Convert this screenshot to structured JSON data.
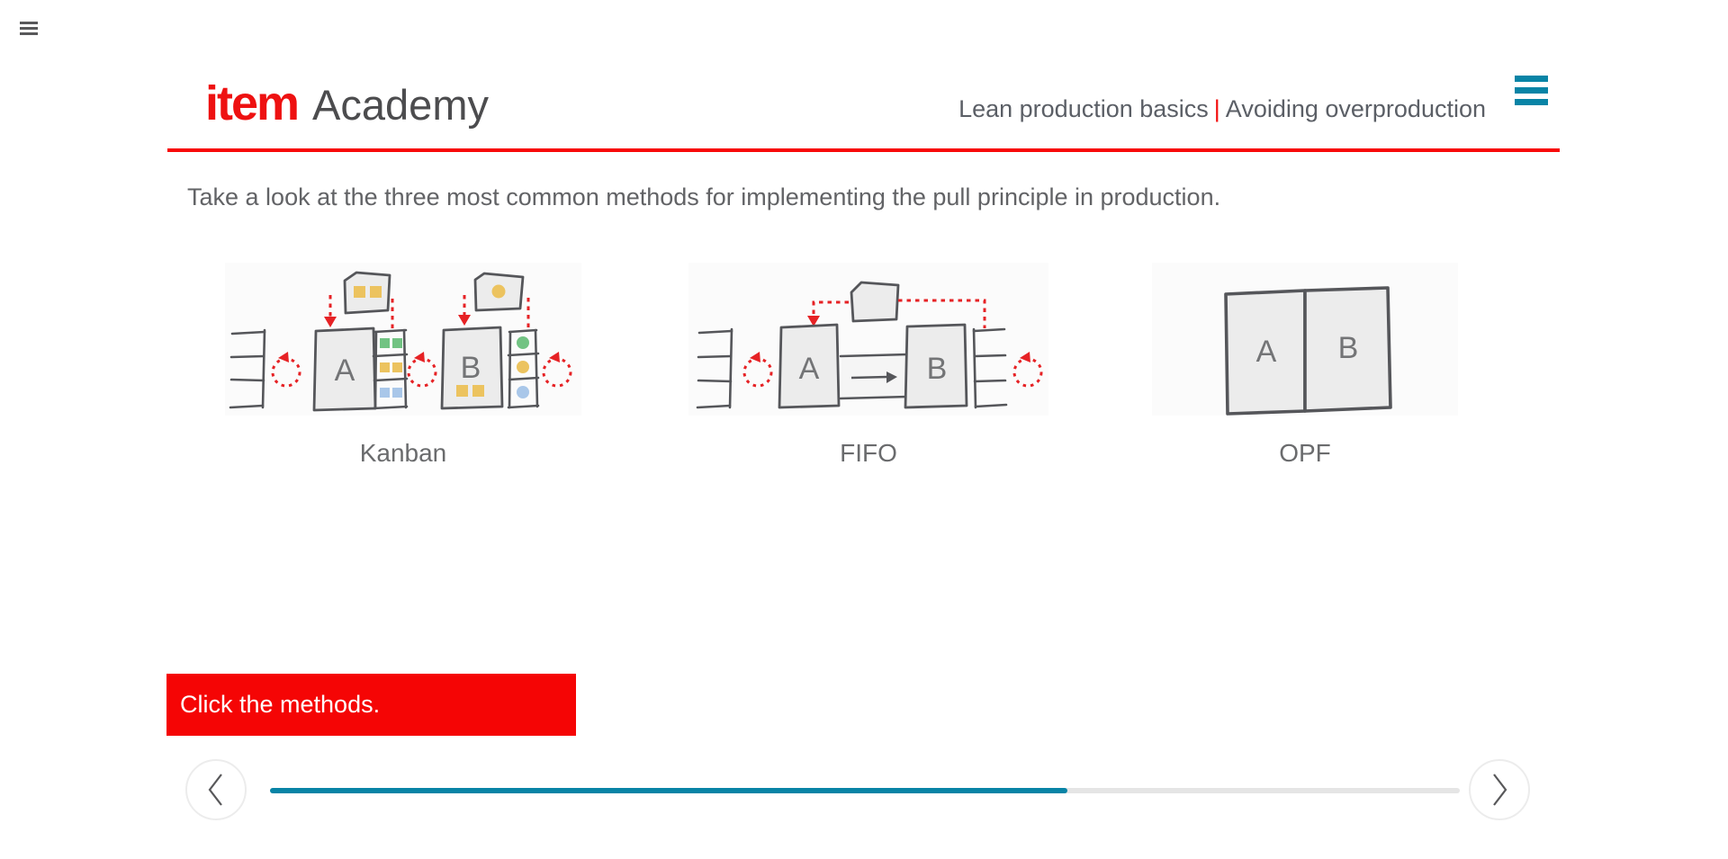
{
  "header": {
    "brand": "item",
    "brand_suffix": "Academy",
    "course": "Lean production basics",
    "separator": "|",
    "lesson": "Avoiding overproduction"
  },
  "main": {
    "instruction": "Take a look at the three most common methods for implementing the pull principle in production.",
    "methods": [
      {
        "label": "Kanban",
        "stations": [
          "A",
          "B"
        ]
      },
      {
        "label": "FIFO",
        "stations": [
          "A",
          "B"
        ]
      },
      {
        "label": "OPF",
        "stations": [
          "A",
          "B"
        ]
      }
    ],
    "prompt": "Click the methods."
  },
  "footer": {
    "progress_percent": 67
  },
  "icons": {
    "corner": "hamburger-icon",
    "header_menu": "hamburger-icon",
    "prev": "chevron-left-icon",
    "next": "chevron-right-icon"
  },
  "colors": {
    "brand_red": "#ee1111",
    "alert_red": "#f50505",
    "rule_red": "#f80808",
    "accent_teal": "#0884a6",
    "signal_red": "#e62225",
    "sketch_stroke": "#55565a",
    "sketch_fill": "#ececec",
    "kanban_yellow": "#ecc35f",
    "kanban_green": "#72c383",
    "kanban_blue": "#a9c7e9"
  }
}
